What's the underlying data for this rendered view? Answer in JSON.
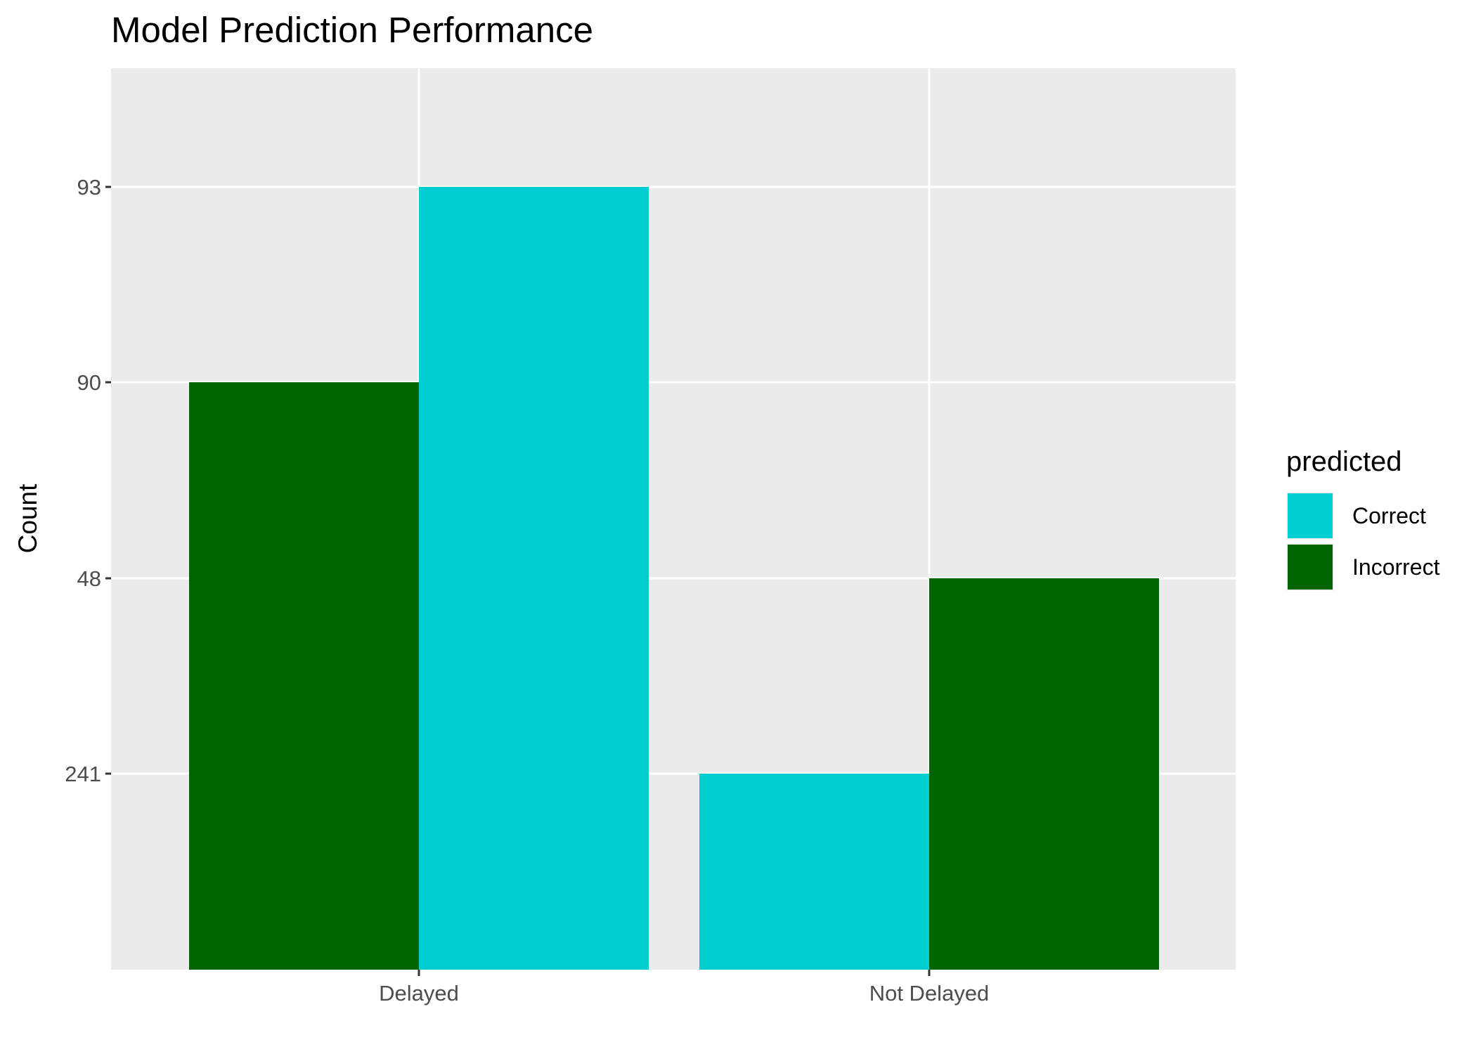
{
  "chart_data": {
    "type": "bar",
    "title": "Model Prediction Performance",
    "xlabel": "",
    "ylabel": "Count",
    "categories": [
      "Delayed",
      "Not Delayed"
    ],
    "y_axis": {
      "scale": "discrete",
      "tick_labels": [
        "241",
        "48",
        "90",
        "93"
      ]
    },
    "series": [
      {
        "name": "Incorrect",
        "color": "#006400",
        "values": [
          "90",
          "48"
        ]
      },
      {
        "name": "Correct",
        "color": "#00CED1",
        "values": [
          "93",
          "241"
        ]
      }
    ],
    "bar_order": [
      {
        "category": "Delayed",
        "series": "Incorrect"
      },
      {
        "category": "Delayed",
        "series": "Correct"
      },
      {
        "category": "Not Delayed",
        "series": "Correct"
      },
      {
        "category": "Not Delayed",
        "series": "Incorrect"
      }
    ],
    "legend": {
      "title": "predicted",
      "position": "right",
      "items": [
        {
          "label": "Correct",
          "color": "#00CED1"
        },
        {
          "label": "Incorrect",
          "color": "#006400"
        }
      ]
    },
    "grid": true,
    "panel_background": "#EBEBEB"
  }
}
